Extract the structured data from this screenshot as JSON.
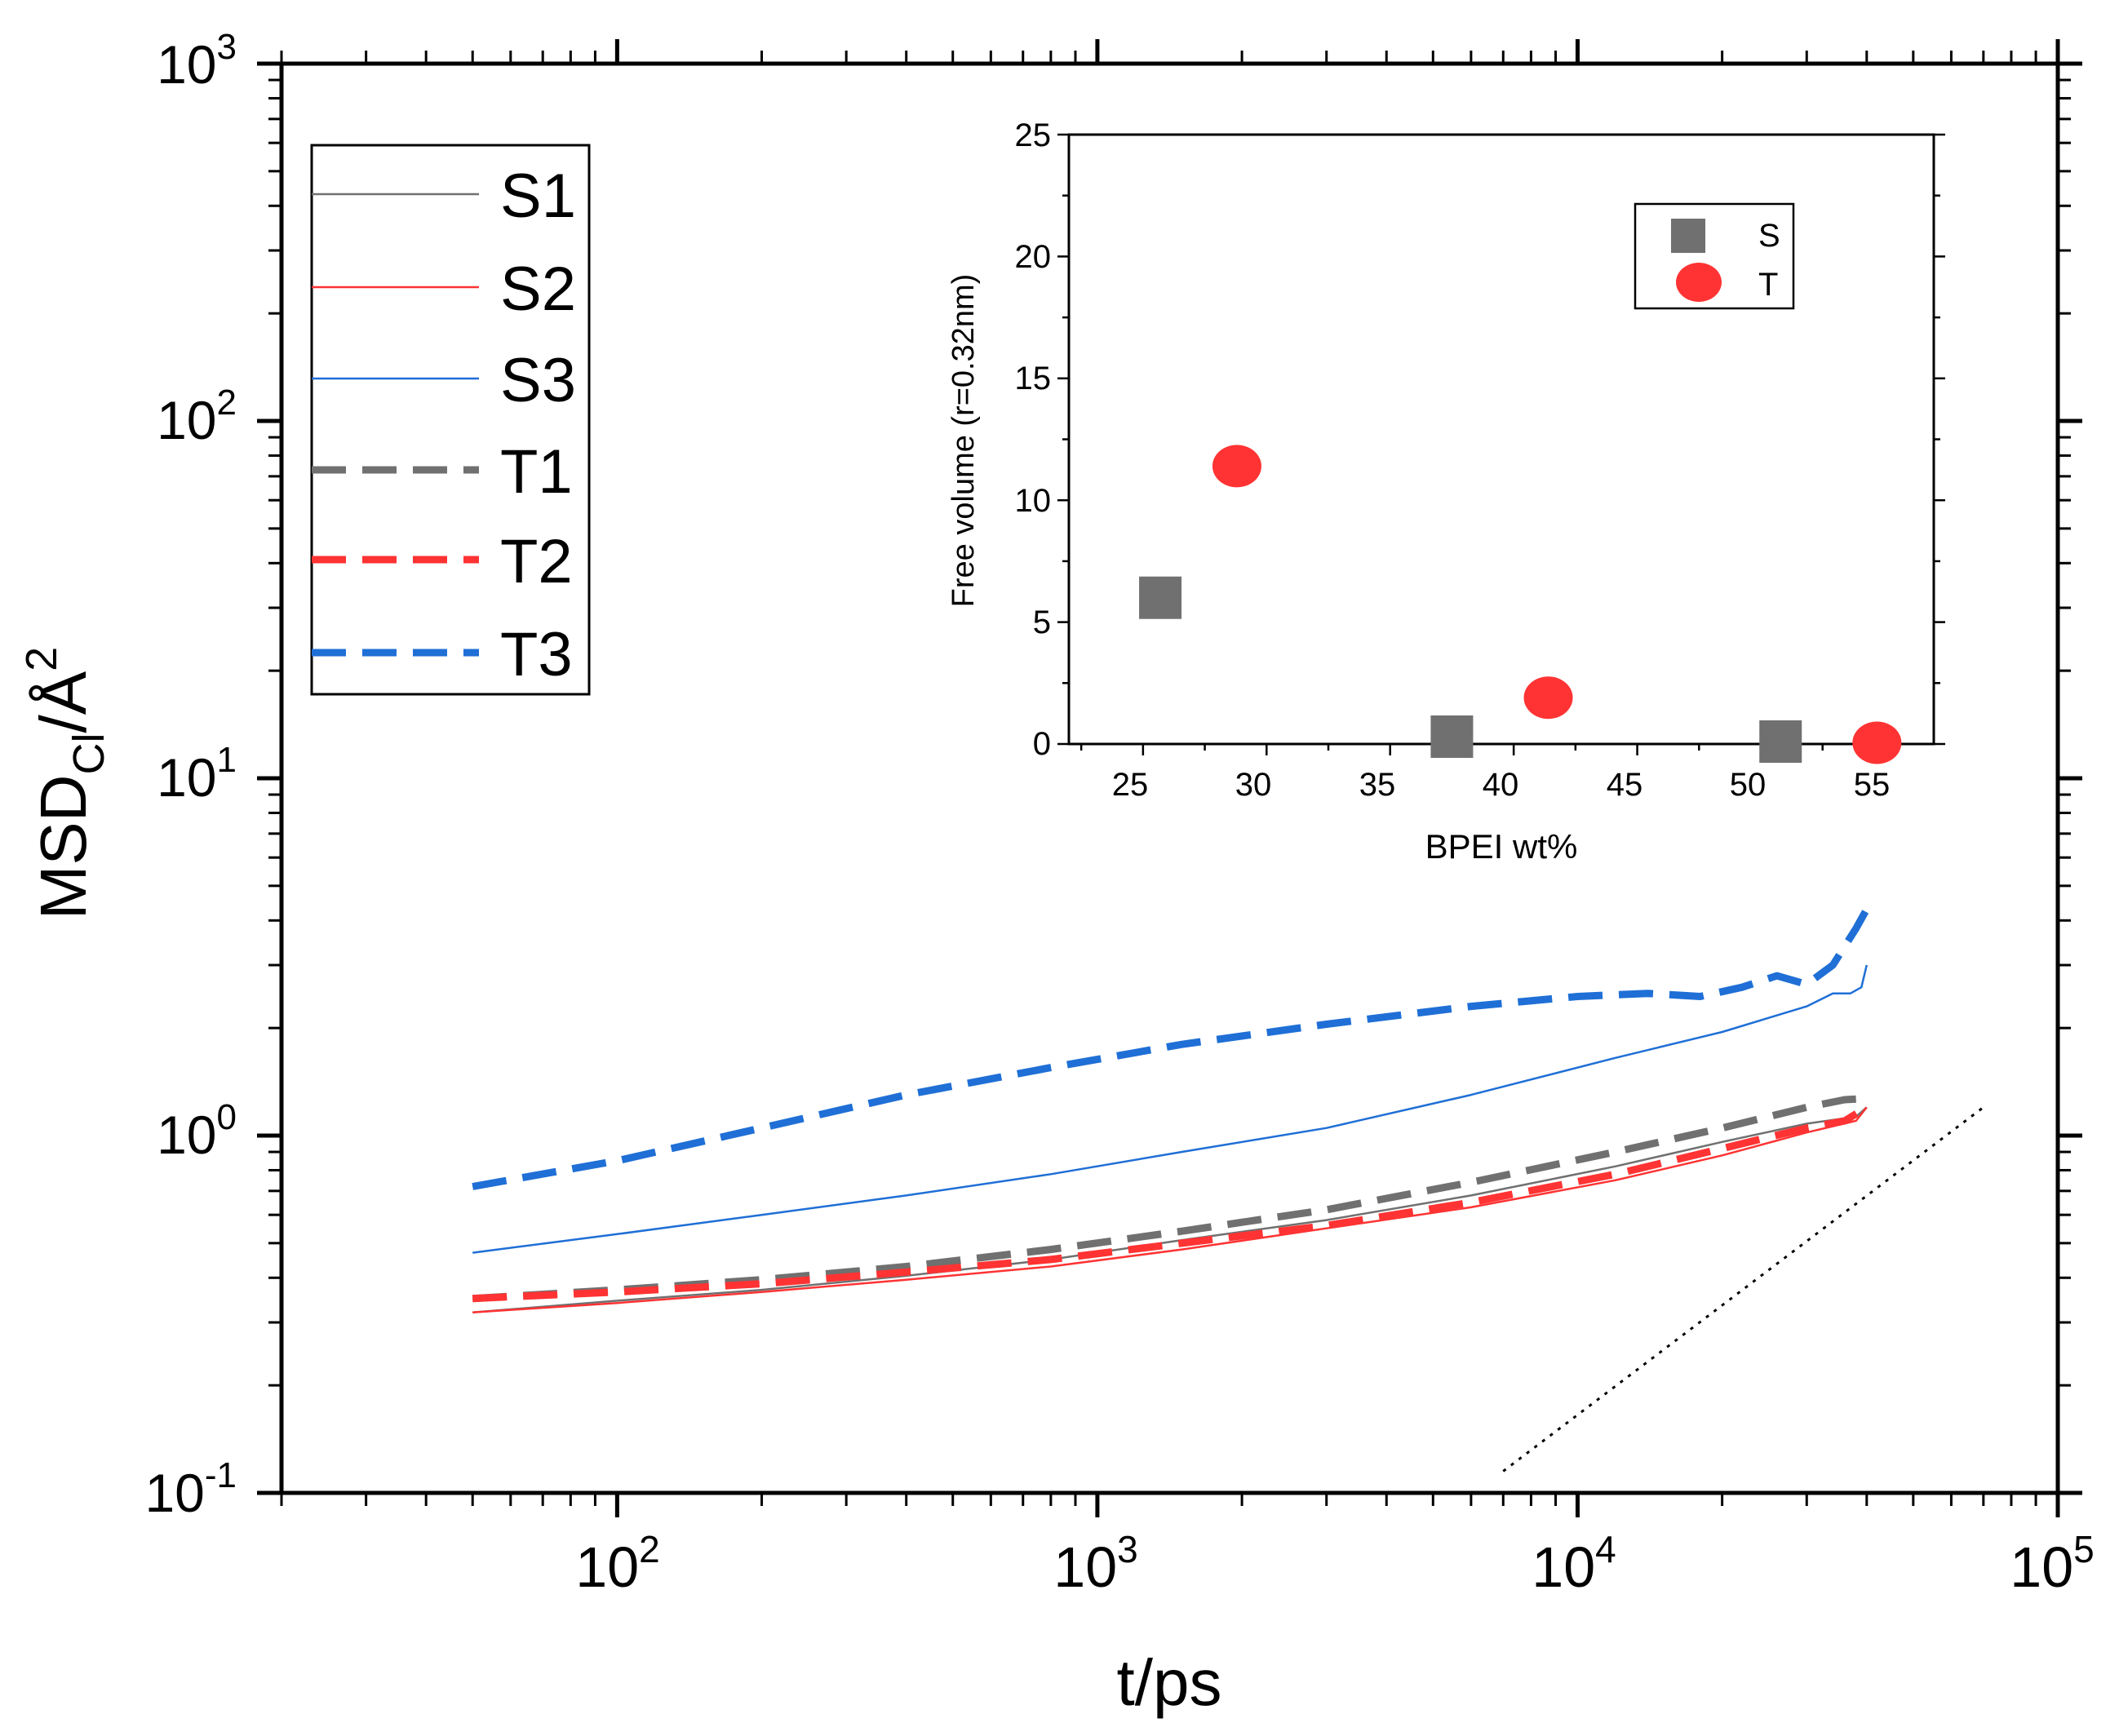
{
  "chart_data": [
    {
      "type": "line",
      "role": "main",
      "xscale": "log",
      "yscale": "log",
      "xlim": [
        20,
        100000
      ],
      "ylim": [
        0.1,
        1000
      ],
      "xlabel": "t/ps",
      "ylabel_main": "MSD",
      "ylabel_sub": "Cl",
      "ylabel_unit": "/Å",
      "ylabel_sup": "2",
      "x_ticks": [
        {
          "value": 100,
          "base": "10",
          "exp": "2"
        },
        {
          "value": 1000,
          "base": "10",
          "exp": "3"
        },
        {
          "value": 10000,
          "base": "10",
          "exp": "4"
        },
        {
          "value": 100000,
          "base": "10",
          "exp": "5"
        }
      ],
      "y_ticks": [
        {
          "value": 0.1,
          "base": "10",
          "exp": "-1"
        },
        {
          "value": 1,
          "base": "10",
          "exp": "0"
        },
        {
          "value": 10,
          "base": "10",
          "exp": "1"
        },
        {
          "value": 100,
          "base": "10",
          "exp": "2"
        },
        {
          "value": 1000,
          "base": "10",
          "exp": "3"
        }
      ],
      "series": [
        {
          "name": "S1",
          "color": "#707070",
          "style": "solid",
          "width": 2.5,
          "x": [
            50,
            100,
            200,
            400,
            800,
            1500,
            3000,
            6000,
            12000,
            20000,
            30000,
            38000,
            40000
          ],
          "y": [
            0.32,
            0.345,
            0.37,
            0.405,
            0.45,
            0.51,
            0.58,
            0.68,
            0.82,
            0.96,
            1.08,
            1.13,
            1.2
          ]
        },
        {
          "name": "S2",
          "color": "#ff3333",
          "style": "solid",
          "width": 2.5,
          "x": [
            50,
            100,
            200,
            400,
            800,
            1500,
            3000,
            6000,
            12000,
            20000,
            30000,
            38000,
            40000
          ],
          "y": [
            0.32,
            0.34,
            0.365,
            0.395,
            0.43,
            0.48,
            0.55,
            0.63,
            0.75,
            0.88,
            1.02,
            1.1,
            1.2
          ]
        },
        {
          "name": "S3",
          "color": "#1f6fd6",
          "style": "solid",
          "width": 2.5,
          "x": [
            50,
            100,
            200,
            400,
            800,
            1500,
            3000,
            6000,
            12000,
            20000,
            30000,
            34000,
            37000,
            39000,
            40000
          ],
          "y": [
            0.47,
            0.53,
            0.6,
            0.68,
            0.78,
            0.9,
            1.05,
            1.3,
            1.65,
            1.95,
            2.3,
            2.5,
            2.5,
            2.6,
            3.0
          ]
        },
        {
          "name": "T1",
          "color": "#707070",
          "style": "dashed",
          "width": 9,
          "x": [
            50,
            100,
            200,
            400,
            800,
            1500,
            3000,
            6000,
            12000,
            20000,
            30000,
            36000,
            40000
          ],
          "y": [
            0.35,
            0.37,
            0.395,
            0.43,
            0.48,
            0.54,
            0.62,
            0.74,
            0.9,
            1.05,
            1.2,
            1.26,
            1.27
          ]
        },
        {
          "name": "T2",
          "color": "#ff3333",
          "style": "dashed",
          "width": 9,
          "x": [
            50,
            100,
            200,
            400,
            800,
            1500,
            3000,
            6000,
            12000,
            20000,
            30000,
            36000,
            40000
          ],
          "y": [
            0.35,
            0.365,
            0.385,
            0.415,
            0.45,
            0.5,
            0.56,
            0.65,
            0.78,
            0.92,
            1.05,
            1.1,
            1.2
          ]
        },
        {
          "name": "T3",
          "color": "#1f6fd6",
          "style": "dashed",
          "width": 9,
          "x": [
            50,
            100,
            200,
            400,
            800,
            1500,
            3000,
            6000,
            10000,
            14000,
            18000,
            22000,
            26000,
            30000,
            34000,
            38000,
            40000
          ],
          "y": [
            0.72,
            0.85,
            1.05,
            1.3,
            1.55,
            1.8,
            2.05,
            2.3,
            2.45,
            2.5,
            2.45,
            2.6,
            2.8,
            2.65,
            3.0,
            3.8,
            4.3
          ]
        }
      ],
      "reference_line": {
        "style": "dotted",
        "color": "#000000",
        "x": [
          7000,
          70000
        ],
        "y": [
          0.115,
          1.2
        ]
      }
    },
    {
      "type": "scatter",
      "role": "inset",
      "xlabel": "BPEI wt%",
      "ylabel": "Free volume (r=0.32nm)",
      "xlim": [
        22,
        57
      ],
      "ylim": [
        0,
        25
      ],
      "x_ticks": [
        25,
        30,
        35,
        40,
        45,
        50,
        55
      ],
      "y_ticks": [
        0,
        5,
        10,
        15,
        20,
        25
      ],
      "series": [
        {
          "name": "S",
          "color": "#707070",
          "marker": "square",
          "x": [
            25.7,
            37.5,
            50.8
          ],
          "y": [
            6.0,
            0.3,
            0.1
          ]
        },
        {
          "name": "T",
          "color": "#ff3333",
          "marker": "circle",
          "x": [
            28.8,
            41.4,
            54.7
          ],
          "y": [
            11.4,
            1.9,
            0.05
          ]
        }
      ]
    }
  ]
}
